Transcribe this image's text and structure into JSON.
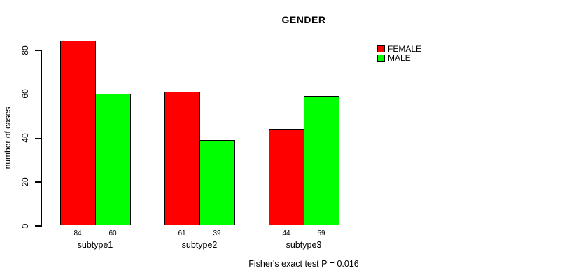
{
  "title": "GENDER",
  "footnote": "Fisher's exact test P = 0.016",
  "colors": {
    "female": "#FF0000",
    "male": "#00FF00",
    "axis": "#000000",
    "background": "#FFFFFF"
  },
  "chart_data": {
    "type": "bar",
    "title": "GENDER",
    "xlabel": "",
    "ylabel": "number of cases",
    "categories": [
      "subtype1",
      "subtype2",
      "subtype3"
    ],
    "series": [
      {
        "name": "FEMALE",
        "color": "#FF0000",
        "values": [
          84,
          61,
          44
        ]
      },
      {
        "name": "MALE",
        "color": "#00FF00",
        "values": [
          60,
          39,
          59
        ]
      }
    ],
    "yticks": [
      0,
      20,
      40,
      60,
      80
    ],
    "ylim": [
      0,
      84
    ],
    "grid": false,
    "bar_value_labels": [
      [
        "84",
        "60"
      ],
      [
        "61",
        "39"
      ],
      [
        "44",
        "59"
      ]
    ],
    "legend_position": "top-right",
    "annotation": "Fisher's exact test P = 0.016"
  }
}
